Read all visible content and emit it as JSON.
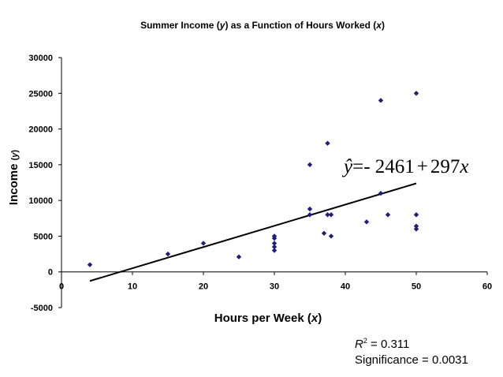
{
  "chart_data": {
    "type": "scatter",
    "title_parts": [
      "Summer Income (",
      "y",
      ") as a Function of Hours Worked (",
      "x",
      ")"
    ],
    "xlabel_parts": [
      "Hours per Week  (",
      "x",
      ")"
    ],
    "ylabel_parts": [
      "Income ",
      "(",
      "y",
      ")"
    ],
    "xlim": [
      0,
      60
    ],
    "ylim": [
      -5000,
      30000
    ],
    "xticks": [
      0,
      10,
      20,
      30,
      40,
      50,
      60
    ],
    "yticks": [
      -5000,
      0,
      5000,
      10000,
      15000,
      20000,
      25000,
      30000
    ],
    "grid": false,
    "marker_color": "#1f1f7a",
    "line_color": "#000000",
    "points": [
      [
        4,
        1000
      ],
      [
        15,
        2500
      ],
      [
        20,
        4000
      ],
      [
        25,
        2100
      ],
      [
        30,
        3000
      ],
      [
        30,
        3500
      ],
      [
        30,
        4000
      ],
      [
        30,
        4700
      ],
      [
        30,
        5000
      ],
      [
        35,
        8000
      ],
      [
        35,
        8800
      ],
      [
        35,
        15000
      ],
      [
        37,
        5400
      ],
      [
        37.5,
        8000
      ],
      [
        37.5,
        18000
      ],
      [
        38,
        5000
      ],
      [
        38,
        8000
      ],
      [
        43,
        7000
      ],
      [
        45,
        11000
      ],
      [
        45,
        24000
      ],
      [
        46,
        8000
      ],
      [
        50,
        6000
      ],
      [
        50,
        6400
      ],
      [
        50,
        8000
      ],
      [
        50,
        25000
      ]
    ],
    "regression": {
      "intercept": -2461,
      "slope": 297,
      "x_range": [
        4,
        50
      ]
    },
    "equation": {
      "lhs": "ŷ",
      "eq": "=- 2461",
      "plus": "+",
      "coef": "297",
      "var": "x"
    },
    "r2_label": "R",
    "r2_sup": "2",
    "r2_value": " = 0.311",
    "significance": "Significance = 0.0031"
  }
}
